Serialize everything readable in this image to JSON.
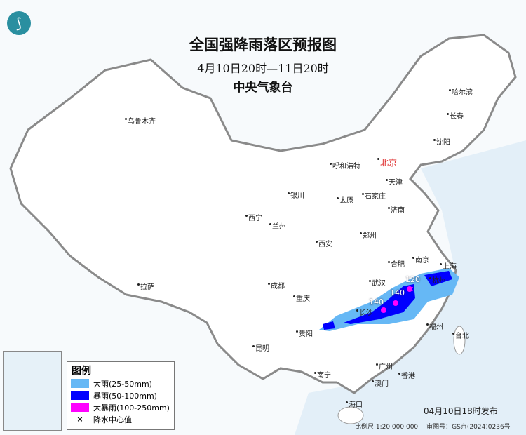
{
  "title": "全国强降雨落区预报图",
  "period": "4月10日20时—11日20时",
  "agency": "中央气象台",
  "cities": [
    "乌鲁木齐",
    "哈尔滨",
    "长春",
    "沈阳",
    "北京",
    "天津",
    "呼和浩特",
    "银川",
    "太原",
    "石家庄",
    "济南",
    "西宁",
    "兰州",
    "郑州",
    "西安",
    "合肥",
    "南京",
    "上海",
    "拉萨",
    "成都",
    "武汉",
    "重庆",
    "杭州",
    "长沙",
    "贵阳",
    "福州",
    "台北",
    "昆明",
    "南宁",
    "广州",
    "香港",
    "澳门",
    "海口"
  ],
  "rain_center_values": [
    "140",
    "140",
    "120"
  ],
  "legend": {
    "title": "图例",
    "items": [
      {
        "label": "大雨(25-50mm)",
        "color": "#66b8f5"
      },
      {
        "label": "暴雨(50-100mm)",
        "color": "#0000ff"
      },
      {
        "label": "大暴雨(100-250mm)",
        "color": "#ff00ff"
      },
      {
        "label": "降水中心值",
        "icon": "cross-icon"
      }
    ]
  },
  "issued": "04月10日18时发布",
  "scale": "比例尺 1:20 000 000",
  "map_number": "审图号：GS京(2024)0236号"
}
